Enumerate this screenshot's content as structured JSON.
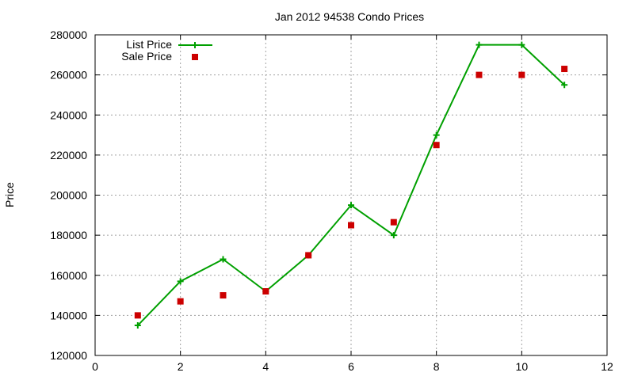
{
  "chart_data": {
    "type": "line",
    "title": "Jan 2012 94538 Condo Prices",
    "xlabel": "",
    "ylabel": "Price",
    "xlim": [
      0,
      12
    ],
    "ylim": [
      120000,
      280000
    ],
    "xticks": [
      0,
      2,
      4,
      6,
      8,
      10,
      12
    ],
    "yticks": [
      120000,
      140000,
      160000,
      180000,
      200000,
      220000,
      240000,
      260000,
      280000
    ],
    "grid": true,
    "legend_position": "top-left",
    "series": [
      {
        "name": "List Price",
        "style": "line-with-plus-markers",
        "color": "#00a000",
        "x": [
          1,
          2,
          3,
          4,
          5,
          6,
          7,
          8,
          9,
          10,
          11
        ],
        "y": [
          135000,
          157000,
          168000,
          152000,
          170000,
          195000,
          180000,
          230000,
          275000,
          275000,
          255000
        ]
      },
      {
        "name": "Sale Price",
        "style": "square-markers",
        "color": "#cc0000",
        "x": [
          1,
          2,
          3,
          4,
          5,
          6,
          7,
          8,
          9,
          10,
          11
        ],
        "y": [
          140000,
          147000,
          150000,
          152000,
          170000,
          185000,
          186500,
          225000,
          260000,
          260000,
          263000
        ]
      }
    ]
  }
}
